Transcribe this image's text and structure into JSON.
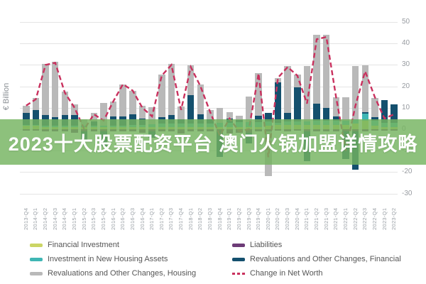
{
  "banner": {
    "text": "2023十大股票配资平台 澳门火锅加盟详情攻略",
    "bg_color": "rgba(116,179,95,0.82)"
  },
  "chart_data": {
    "type": "combo-stacked-bar-line",
    "title": "",
    "ylabel": "€ Billion",
    "xlabel": "",
    "grid": true,
    "legend_position": "bottom",
    "y_axis": {
      "side": "right",
      "min": -30,
      "max": 50,
      "step": 10,
      "ticks": [
        "50",
        "40",
        "30",
        "20",
        "10",
        "0",
        "-10",
        "-20",
        "-30"
      ]
    },
    "categories": [
      "2013-Q4",
      "2014-Q1",
      "2014-Q2",
      "2014-Q3",
      "2014-Q4",
      "2015-Q1",
      "2015-Q2",
      "2015-Q3",
      "2015-Q4",
      "2016-Q1",
      "2016-Q2",
      "2016-Q3",
      "2016-Q4",
      "2017-Q1",
      "2017-Q2",
      "2017-Q3",
      "2017-Q4",
      "2018-Q1",
      "2018-Q2",
      "2018-Q3",
      "2018-Q4",
      "2019-Q1",
      "2019-Q2",
      "2019-Q3",
      "2019-Q4",
      "2020-Q1",
      "2020-Q2",
      "2020-Q3",
      "2020-Q4",
      "2021-Q1",
      "2021-Q2",
      "2021-Q3",
      "2021-Q4",
      "2022-Q1",
      "2022-Q2",
      "2022-Q3",
      "2022-Q4",
      "2023-Q1",
      "2023-Q2"
    ],
    "bar_series": [
      {
        "name": "Financial Investment",
        "color": "#cbd565",
        "values": [
          1.5,
          1.5,
          1,
          1,
          1,
          1,
          1,
          1,
          1,
          1,
          1,
          1,
          1,
          1,
          1,
          1,
          1,
          1,
          1,
          1,
          1,
          1,
          1,
          1,
          1,
          1.5,
          2,
          2,
          2,
          2,
          2,
          2,
          2,
          2,
          2.5,
          4,
          1.5,
          1,
          1
        ]
      },
      {
        "name": "Investment in New Housing Assets",
        "color": "#3fb6b4",
        "values": [
          0.5,
          0.5,
          0.5,
          0.5,
          0.5,
          0.5,
          0.5,
          0.7,
          0.7,
          0.8,
          0.8,
          1,
          1,
          1.2,
          1.5,
          1.5,
          1.5,
          1.8,
          1.8,
          1.8,
          2,
          2,
          2.2,
          2.2,
          2.2,
          2,
          1,
          1.5,
          1.5,
          1.5,
          2,
          2,
          2,
          2,
          2,
          3.3,
          2.5,
          2,
          2
        ]
      },
      {
        "name": "Liabilities",
        "color": "#6d3b77",
        "values": [
          -0.5,
          -0.5,
          -1,
          -1,
          -1,
          -1.5,
          -1,
          -1,
          -1,
          -1,
          -1,
          -1,
          -1.5,
          -1,
          -1,
          -1,
          -2,
          -1,
          -1,
          -1,
          -1,
          -2,
          -1.5,
          -1.5,
          -1,
          -1,
          -0.5,
          -1,
          -0.5,
          -1,
          -1,
          -1,
          -1,
          -1,
          -1,
          -1,
          -0.5,
          -0.5,
          -0.5
        ]
      },
      {
        "name": "Revaluations and Other Changes, Financial",
        "color": "#14506e",
        "values": [
          5.5,
          7,
          5,
          4,
          5,
          5,
          -4,
          2,
          -7,
          4,
          4,
          5,
          3,
          -3,
          3,
          4,
          2,
          13,
          4,
          2,
          -12,
          2,
          1,
          -5,
          3,
          4,
          19,
          4,
          16,
          -14,
          8,
          6,
          2,
          -13,
          -18,
          0.5,
          1.5,
          10.5,
          8.5
        ]
      },
      {
        "name": "Revaluations and Other Changes, Housing",
        "color": "#b9b9b9",
        "values": [
          3.5,
          5.5,
          24,
          26,
          11,
          5,
          3,
          4,
          10.5,
          7,
          15,
          11,
          6,
          8,
          20,
          24,
          6,
          14,
          14,
          4,
          7,
          3,
          2,
          12,
          20,
          -21,
          2,
          22,
          6,
          26,
          32,
          34,
          9,
          11,
          25,
          22,
          9,
          0,
          0
        ]
      }
    ],
    "line_series": {
      "name": "Change in Net Worth",
      "color": "#c9315e",
      "dashed": true,
      "values": [
        11,
        14,
        30,
        31,
        17,
        10,
        0,
        7,
        4,
        13,
        21,
        18,
        10,
        6,
        25,
        30,
        9,
        29,
        20,
        8,
        -3,
        5,
        -1,
        0,
        26,
        -13,
        24,
        29,
        25,
        12,
        42,
        43,
        15,
        -10,
        11,
        27,
        15,
        5,
        7
      ]
    }
  },
  "legend": {
    "columns": [
      [
        {
          "label": "Financial Investment",
          "color": "#cbd565",
          "swatch": "box"
        },
        {
          "label": "Investment in New Housing Assets",
          "color": "#3fb6b4",
          "swatch": "box"
        },
        {
          "label": "Revaluations and Other Changes, Housing",
          "color": "#b9b9b9",
          "swatch": "box"
        }
      ],
      [
        {
          "label": "Liabilities",
          "color": "#6d3b77",
          "swatch": "box"
        },
        {
          "label": "Revaluations and Other Changes, Financial",
          "color": "#14506e",
          "swatch": "box"
        },
        {
          "label": "Change in Net Worth",
          "color": "#c9315e",
          "swatch": "dash"
        }
      ]
    ]
  }
}
